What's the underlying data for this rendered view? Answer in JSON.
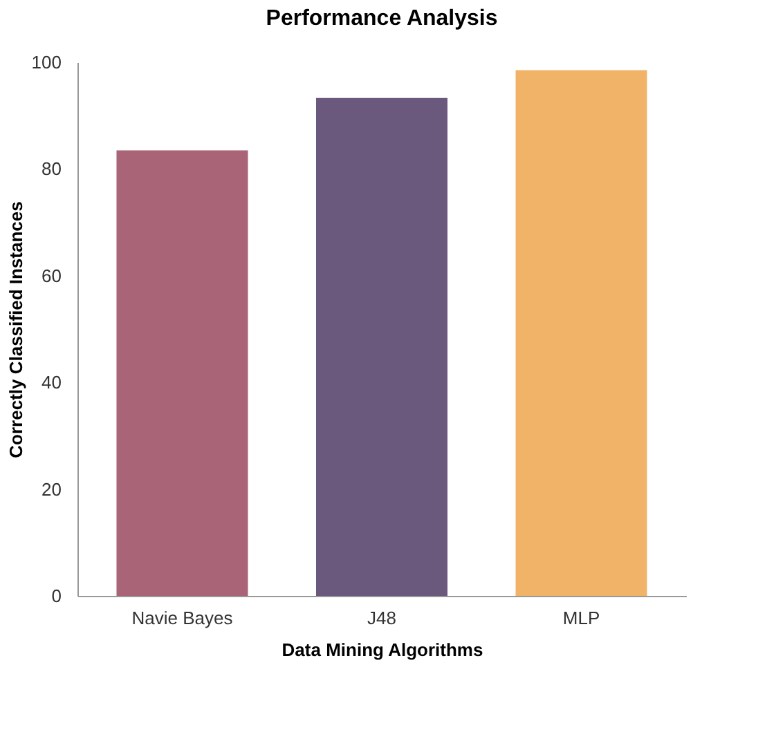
{
  "chart_data": {
    "type": "bar",
    "title": "Performance Analysis",
    "xlabel": "Data Mining Algorithms",
    "ylabel": "Correctly Classified Instances",
    "categories": [
      "Navie Bayes",
      "J48",
      "MLP"
    ],
    "values": [
      83.5,
      93.3,
      98.5
    ],
    "colors": [
      "#a96577",
      "#6b587d",
      "#f0b368"
    ],
    "ylim": [
      0,
      100
    ],
    "yticks": [
      0,
      20,
      40,
      60,
      80,
      100
    ],
    "grid": false
  }
}
